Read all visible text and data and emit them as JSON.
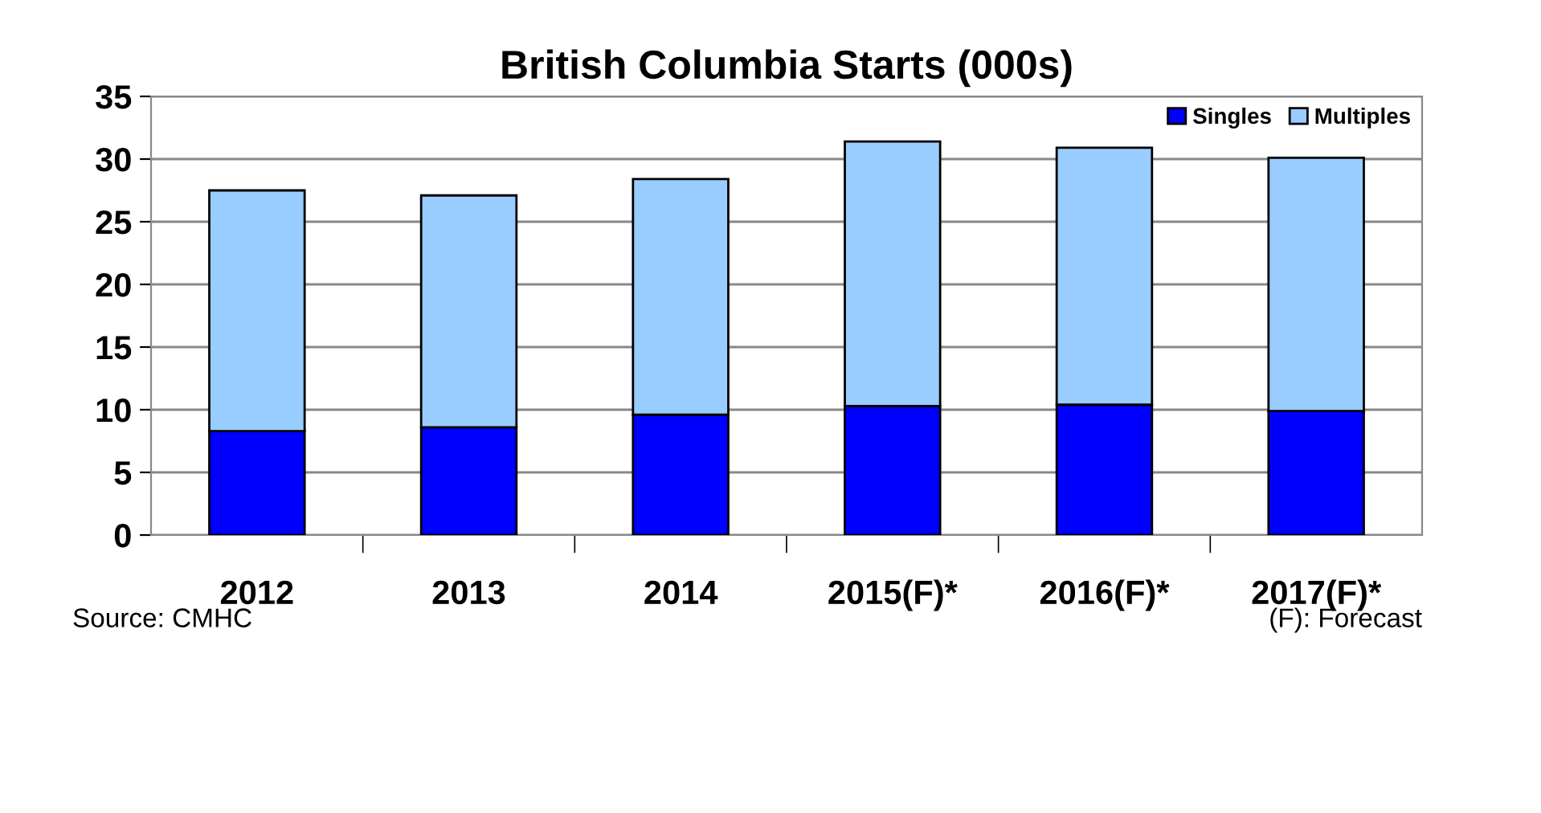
{
  "chart_data": {
    "type": "bar",
    "title": "British Columbia Starts (000s)",
    "stacked": true,
    "categories": [
      "2012",
      "2013",
      "2014",
      "2015(F)*",
      "2016(F)*",
      "2017(F)*"
    ],
    "series": [
      {
        "name": "Singles",
        "color": "#0000ff",
        "values": [
          8.3,
          8.6,
          9.6,
          10.3,
          10.4,
          9.9
        ]
      },
      {
        "name": "Multiples",
        "color": "#99ccff",
        "values": [
          19.2,
          18.5,
          18.8,
          21.1,
          20.5,
          20.2
        ]
      }
    ],
    "ylim": [
      0,
      35
    ],
    "yticks": [
      0,
      5,
      10,
      15,
      20,
      25,
      30,
      35
    ],
    "grid": "y",
    "legend": "top right",
    "annotations": [
      "Source: CMHC",
      "(F): Forecast"
    ]
  }
}
